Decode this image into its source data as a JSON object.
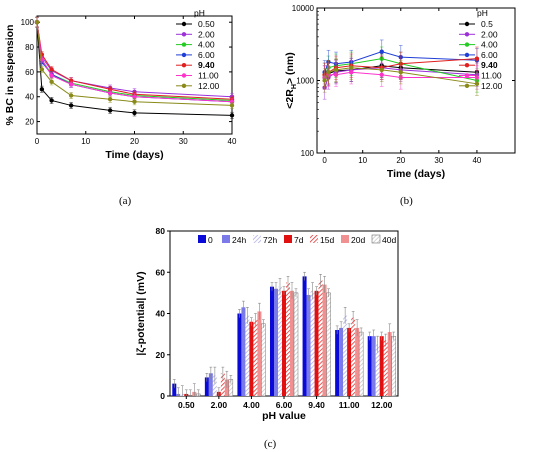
{
  "captions": {
    "a": "(a)",
    "b": "(b)",
    "c": "(c)"
  },
  "chart_data": [
    {
      "panel": "a",
      "type": "line",
      "xlabel": "Time (days)",
      "ylabel": "% BC in suspension",
      "xlim": [
        0,
        40
      ],
      "ylim": [
        10,
        105
      ],
      "xticks": [
        0,
        10,
        20,
        30,
        40
      ],
      "yticks": [
        20,
        40,
        60,
        80,
        100
      ],
      "legend_title": "pH",
      "legend_placement": "top-right",
      "x": [
        0,
        1,
        3,
        7,
        15,
        20,
        40
      ],
      "series": [
        {
          "name": "0.50",
          "bold": false,
          "color": "#000000",
          "values": [
            100,
            46,
            37,
            33,
            29,
            27,
            25
          ]
        },
        {
          "name": "2.00",
          "bold": false,
          "color": "#9b30d9",
          "values": [
            100,
            72,
            61,
            53,
            47,
            44,
            40
          ]
        },
        {
          "name": "4.00",
          "bold": false,
          "color": "#22cc22",
          "values": [
            100,
            70,
            58,
            51,
            44,
            41,
            37
          ]
        },
        {
          "name": "6.00",
          "bold": false,
          "color": "#1f3fd6",
          "values": [
            100,
            68,
            58,
            50,
            43,
            40,
            36
          ]
        },
        {
          "name": "9.40",
          "bold": true,
          "color": "#e02020",
          "values": [
            100,
            74,
            62,
            53,
            46,
            42,
            38
          ]
        },
        {
          "name": "11.00",
          "bold": false,
          "color": "#ff33cc",
          "values": [
            100,
            70,
            57,
            50,
            43,
            40,
            36
          ]
        },
        {
          "name": "12.00",
          "bold": false,
          "color": "#8a8a1a",
          "values": [
            100,
            62,
            52,
            41,
            38,
            36,
            33
          ]
        }
      ]
    },
    {
      "panel": "b",
      "type": "line",
      "xlabel": "Time (days)",
      "ylabel_prefix": "<2R",
      "ylabel_sub": "H",
      "ylabel_suffix": "> (nm)",
      "log_y": true,
      "xlim": [
        -2,
        50
      ],
      "ylim": [
        100,
        10000
      ],
      "xticks": [
        0,
        10,
        20,
        30,
        40
      ],
      "yticks": [
        100,
        1000,
        10000
      ],
      "legend_title": "pH",
      "legend_placement": "top-right",
      "x": [
        0,
        1,
        3,
        7,
        15,
        20,
        40
      ],
      "series": [
        {
          "name": "0.5",
          "bold": false,
          "color": "#000000",
          "values": [
            1100,
            1250,
            1350,
            1400,
            1600,
            1500,
            1300
          ]
        },
        {
          "name": "2.00",
          "bold": false,
          "color": "#9b30d9",
          "values": [
            800,
            1100,
            1300,
            1400,
            1500,
            1400,
            1200
          ]
        },
        {
          "name": "4.00",
          "bold": false,
          "color": "#22cc22",
          "values": [
            1200,
            1500,
            1600,
            1700,
            2000,
            1700,
            1000
          ]
        },
        {
          "name": "6.00",
          "bold": false,
          "color": "#1f3fd6",
          "values": [
            1300,
            1800,
            1700,
            1800,
            2500,
            2100,
            1900
          ]
        },
        {
          "name": "9.40",
          "bold": true,
          "color": "#e02020",
          "values": [
            1200,
            1300,
            1500,
            1600,
            1500,
            1700,
            2000
          ]
        },
        {
          "name": "11.00",
          "bold": false,
          "color": "#ff33cc",
          "values": [
            1100,
            1200,
            1200,
            1300,
            1200,
            1100,
            1100
          ]
        },
        {
          "name": "12.00",
          "bold": false,
          "color": "#8a8a1a",
          "values": [
            1000,
            1300,
            1400,
            1500,
            1400,
            1300,
            900
          ]
        }
      ]
    },
    {
      "panel": "c",
      "type": "bar",
      "xlabel": "pH value",
      "ylabel": "|ζ-potential| (mV)",
      "ylim": [
        0,
        80
      ],
      "yticks": [
        0,
        20,
        40,
        60,
        80
      ],
      "legend_placement": "top",
      "categories": [
        "0.50",
        "2.00",
        "4.00",
        "6.00",
        "9.40",
        "11.00",
        "12.00"
      ],
      "series": [
        {
          "name": "0",
          "color": "#0a0ad8",
          "pattern": "solid",
          "values": [
            6,
            9,
            40,
            53,
            58,
            32,
            29
          ]
        },
        {
          "name": "24h",
          "color": "#7a7ae8",
          "pattern": "solid",
          "values": [
            1,
            11,
            43,
            52,
            49,
            33,
            29
          ]
        },
        {
          "name": "72h",
          "color": "#b0b0e8",
          "pattern": "hatch",
          "values": [
            1,
            10,
            39,
            53,
            51,
            39,
            25
          ]
        },
        {
          "name": "7d",
          "color": "#e01010",
          "pattern": "solid",
          "values": [
            1,
            2,
            36,
            51,
            51,
            33,
            29
          ]
        },
        {
          "name": "15d",
          "color": "#e03030",
          "pattern": "hatch",
          "values": [
            0,
            11,
            37,
            55,
            56,
            38,
            27
          ]
        },
        {
          "name": "20d",
          "color": "#f09090",
          "pattern": "solid",
          "values": [
            2,
            8,
            41,
            51,
            54,
            33,
            31
          ]
        },
        {
          "name": "40d",
          "color": "#c8c8c8",
          "pattern": "hatch",
          "values": [
            1,
            8,
            35,
            50,
            50,
            31,
            29
          ]
        }
      ]
    }
  ]
}
